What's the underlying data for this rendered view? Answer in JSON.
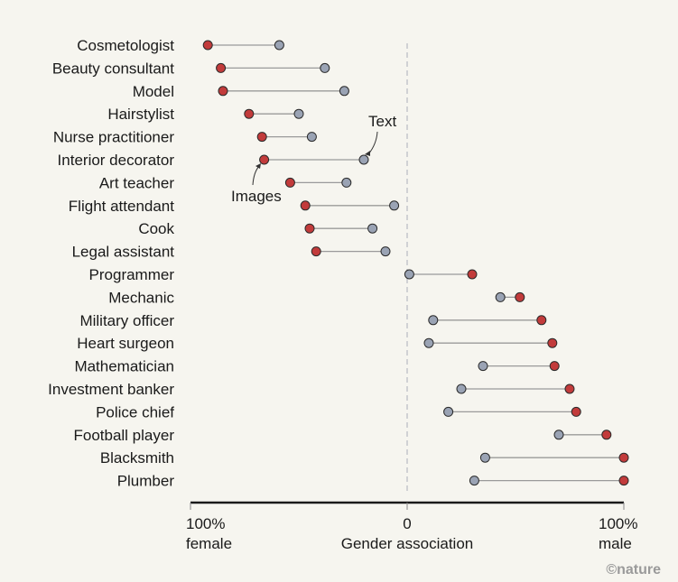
{
  "chart_data": {
    "type": "dumbbell",
    "title": "",
    "xlabel": "Gender association",
    "xlim": [
      -100,
      100
    ],
    "x_ticks": [
      {
        "value": -100,
        "line1": "100%",
        "line2": "female"
      },
      {
        "value": 0,
        "line1": "0",
        "line2": "Gender association"
      },
      {
        "value": 100,
        "line1": "100%",
        "line2": "male"
      }
    ],
    "series_meta": [
      {
        "name": "Images",
        "color": "#c23b3b"
      },
      {
        "name": "Text",
        "color": "#9aa3b4"
      }
    ],
    "categories": [
      "Cosmetologist",
      "Beauty consultant",
      "Model",
      "Hairstylist",
      "Nurse practitioner",
      "Interior decorator",
      "Art teacher",
      "Flight attendant",
      "Cook",
      "Legal assistant",
      "Programmer",
      "Mechanic",
      "Military officer",
      "Heart surgeon",
      "Mathematician",
      "Investment banker",
      "Police chief",
      "Football player",
      "Blacksmith",
      "Plumber"
    ],
    "series": [
      {
        "name": "Images",
        "values": [
          -92,
          -86,
          -85,
          -73,
          -67,
          -66,
          -54,
          -47,
          -45,
          -42,
          30,
          52,
          62,
          67,
          68,
          75,
          78,
          92,
          100,
          100
        ]
      },
      {
        "name": "Text",
        "values": [
          -59,
          -38,
          -29,
          -50,
          -44,
          -20,
          -28,
          -6,
          -16,
          -10,
          1,
          43,
          12,
          10,
          35,
          25,
          19,
          70,
          36,
          31
        ]
      }
    ],
    "annotations": [
      {
        "text": "Text",
        "category": "Interior decorator",
        "series": "Text"
      },
      {
        "text": "Images",
        "category": "Interior decorator",
        "series": "Images"
      }
    ],
    "credit": "©nature"
  }
}
